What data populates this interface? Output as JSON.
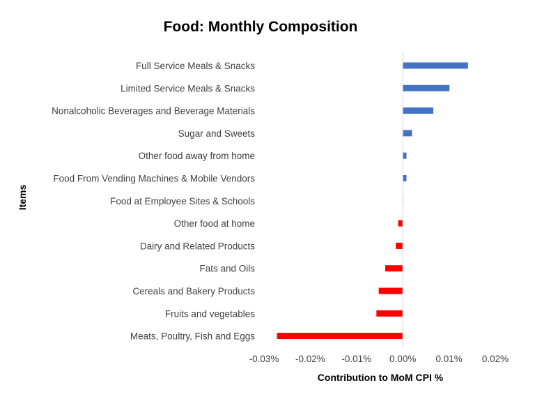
{
  "chart_data": {
    "type": "bar",
    "orientation": "horizontal",
    "title": "Food: Monthly Composition",
    "xlabel": "Contribution to MoM CPI %",
    "ylabel": "Items",
    "xlim": [
      -0.03,
      0.02
    ],
    "xticks": [
      -0.03,
      -0.02,
      -0.01,
      0.0,
      0.01,
      0.02
    ],
    "xtick_labels": [
      "-0.03%",
      "-0.02%",
      "-0.01%",
      "0.00%",
      "0.01%",
      "0.02%"
    ],
    "grid": false,
    "positive_color": "#4472C4",
    "negative_color": "#FF0000",
    "categories": [
      "Full Service Meals & Snacks",
      "Limited Service Meals & Snacks",
      "Nonalcoholic Beverages and Beverage Materials",
      "Sugar and Sweets",
      "Other food away from home",
      "Food From Vending Machines & Mobile Vendors",
      "Food at Employee Sites & Schools",
      "Other food at home",
      "Dairy and Related Products",
      "Fats and Oils",
      "Cereals and Bakery Products",
      "Fruits and vegetables",
      "Meats, Poultry, Fish and Eggs"
    ],
    "values": [
      0.0141,
      0.0101,
      0.0066,
      0.002,
      0.0008,
      0.0008,
      0.0001,
      -0.001,
      -0.0015,
      -0.0038,
      -0.0052,
      -0.0057,
      -0.0272
    ]
  }
}
